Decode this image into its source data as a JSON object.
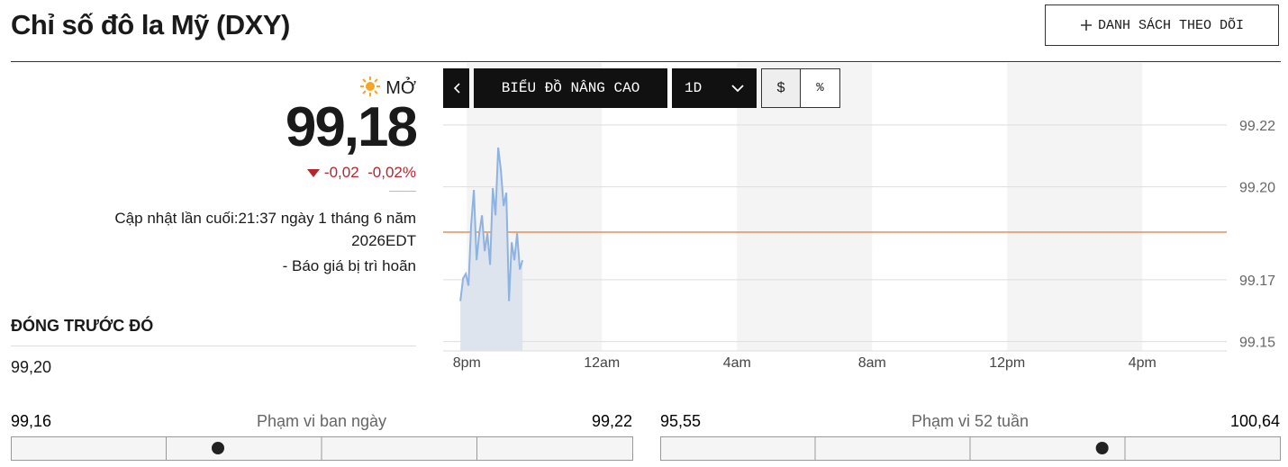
{
  "header": {
    "title": "Chỉ số đô la Mỹ (DXY)",
    "watchlist_button": "DANH SÁCH THEO DÕI"
  },
  "quote": {
    "status": "MỞ",
    "price": {
      "value": 99.18,
      "label": "99,18"
    },
    "change": "-0,02",
    "change_percent": "-0,02%",
    "updated": "Cập nhật lần cuối:21:37 ngày 1 tháng 6 năm 2026EDT",
    "delay_note": "-  Báo giá bị trì hoãn",
    "previous_close_label": "ĐÓNG TRƯỚC ĐÓ",
    "previous_close": "99,20"
  },
  "chart_controls": {
    "advanced": "BIỂU ĐỒ NÂNG CAO",
    "period": "1D",
    "currency": "$",
    "percent": "%"
  },
  "chart": {
    "type": "line",
    "color": "#8fb3e0",
    "x": [
      -0.19,
      -0.11,
      -0.03,
      0.05,
      0.13,
      0.21,
      0.29,
      0.37,
      0.45,
      0.53,
      0.61,
      0.69,
      0.77,
      0.85,
      0.93,
      1.01,
      1.09,
      1.17,
      1.25,
      1.33,
      1.41,
      1.49,
      1.57,
      1.65
    ],
    "values": [
      99.1631,
      99.1704,
      99.1719,
      99.1681,
      99.1879,
      99.199,
      99.1763,
      99.185,
      99.1908,
      99.1792,
      99.185,
      99.1748,
      99.1996,
      99.1908,
      99.2127,
      99.2054,
      99.1938,
      99.1981,
      99.1631,
      99.1821,
      99.1763,
      99.185,
      99.1733,
      99.1763
    ],
    "xlim": [
      -0.7,
      22.5
    ],
    "xticks": [
      {
        "value": 0,
        "label": "8pm"
      },
      {
        "value": 4,
        "label": "12am"
      },
      {
        "value": 8,
        "label": "4am"
      },
      {
        "value": 12,
        "label": "8am"
      },
      {
        "value": 16,
        "label": "12pm"
      },
      {
        "value": 20,
        "label": "4pm"
      }
    ],
    "ylim": [
      99.147,
      99.24
    ],
    "yticks": [
      99.22,
      {
        "value": 99.2,
        "label": "99.20"
      },
      99.17,
      99.15
    ],
    "grid": true
  },
  "ranges": [
    {
      "low": {
        "value": 99.16,
        "label": "99,16"
      },
      "label": "Phạm vi ban ngày",
      "high": {
        "value": 99.22,
        "label": "99,22"
      }
    },
    {
      "low": {
        "value": 95.55,
        "label": "95,55"
      },
      "label": "Phạm vi 52 tuần",
      "high": {
        "value": 100.64,
        "label": "100,64"
      }
    }
  ]
}
